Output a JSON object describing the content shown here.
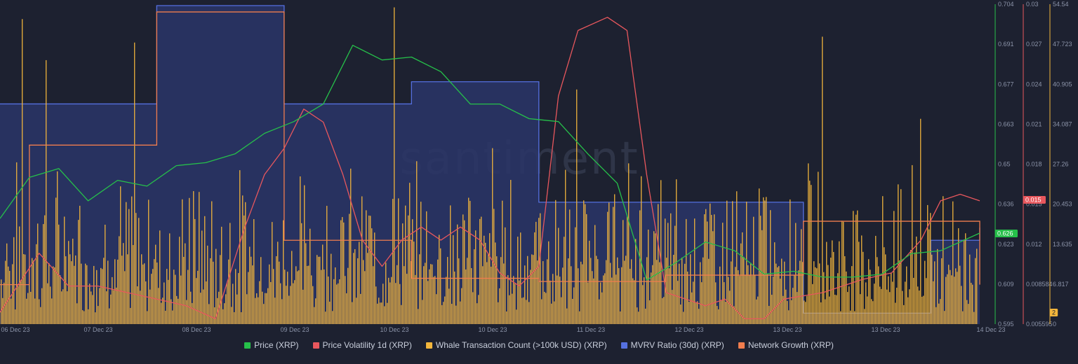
{
  "watermark": "santiment",
  "colors": {
    "background": "#1d2130",
    "price": "#26c04a",
    "volatility": "#e8575d",
    "whale": "#f3b63c",
    "mvrv": "#5570e0",
    "network": "#f07d4e"
  },
  "current_labels": {
    "price": "0.626",
    "volatility": "0.015",
    "whale": "2"
  },
  "chart_data": {
    "type": "bar",
    "x_tick_labels": [
      "06 Dec 23",
      "07 Dec 23",
      "08 Dec 23",
      "09 Dec 23",
      "10 Dec 23",
      "10 Dec 23",
      "11 Dec 23",
      "12 Dec 23",
      "13 Dec 23",
      "13 Dec 23",
      "14 Dec 23"
    ],
    "axes": [
      {
        "series": "Price (XRP)",
        "ticks": [
          "0.704",
          "0.691",
          "0.677",
          "0.663",
          "0.65",
          "0.636",
          "0.623",
          "0.609",
          "0.595"
        ],
        "range": [
          0.595,
          0.704
        ]
      },
      {
        "series": "Price Volatility 1d (XRP)",
        "ticks": [
          "0.03",
          "0.027",
          "0.024",
          "0.021",
          "0.018",
          "0.015",
          "0.012",
          "0.008584",
          "0.005595"
        ],
        "range": [
          0.005595,
          0.03
        ]
      },
      {
        "series": "Whale Transaction Count (>100k USD) (XRP)",
        "ticks": [
          "54.54",
          "47.723",
          "40.905",
          "34.087",
          "27.26",
          "20.453",
          "13.635",
          "6.817",
          "0"
        ],
        "range": [
          0,
          54.54
        ]
      }
    ],
    "series": [
      {
        "name": "Price (XRP)",
        "type": "line",
        "x": [
          0,
          0.03,
          0.06,
          0.09,
          0.12,
          0.15,
          0.18,
          0.21,
          0.24,
          0.27,
          0.3,
          0.33,
          0.36,
          0.39,
          0.42,
          0.45,
          0.48,
          0.51,
          0.54,
          0.57,
          0.6,
          0.63,
          0.66,
          0.69,
          0.72,
          0.75,
          0.78,
          0.81,
          0.84,
          0.87,
          0.9,
          0.93,
          0.96,
          1.0
        ],
        "values": [
          0.631,
          0.645,
          0.648,
          0.637,
          0.644,
          0.642,
          0.649,
          0.65,
          0.653,
          0.66,
          0.664,
          0.67,
          0.69,
          0.685,
          0.686,
          0.681,
          0.67,
          0.67,
          0.665,
          0.664,
          0.653,
          0.643,
          0.61,
          0.616,
          0.623,
          0.62,
          0.612,
          0.613,
          0.611,
          0.611,
          0.612,
          0.619,
          0.62,
          0.626
        ]
      },
      {
        "name": "Price Volatility 1d (XRP)",
        "type": "line",
        "x": [
          0,
          0.04,
          0.07,
          0.1,
          0.13,
          0.16,
          0.19,
          0.22,
          0.25,
          0.27,
          0.29,
          0.31,
          0.33,
          0.35,
          0.37,
          0.39,
          0.41,
          0.43,
          0.45,
          0.47,
          0.49,
          0.51,
          0.53,
          0.55,
          0.57,
          0.59,
          0.62,
          0.64,
          0.66,
          0.68,
          0.7,
          0.72,
          0.74,
          0.76,
          0.78,
          0.8,
          0.84,
          0.88,
          0.91,
          0.94,
          0.96,
          0.98,
          1.0
        ],
        "values": [
          0.0065,
          0.011,
          0.0085,
          0.0085,
          0.008,
          0.0075,
          0.007,
          0.006,
          0.013,
          0.017,
          0.019,
          0.022,
          0.021,
          0.017,
          0.012,
          0.01,
          0.012,
          0.013,
          0.012,
          0.013,
          0.012,
          0.0095,
          0.0085,
          0.01,
          0.023,
          0.028,
          0.029,
          0.028,
          0.017,
          0.008,
          0.0075,
          0.007,
          0.0075,
          0.006,
          0.006,
          0.0075,
          0.008,
          0.009,
          0.0095,
          0.012,
          0.015,
          0.0155,
          0.015
        ]
      },
      {
        "name": "MVRV Ratio (30d) (XRP)",
        "type": "step",
        "x": [
          0,
          0.16,
          0.29,
          0.42,
          0.55,
          0.82,
          0.95,
          1.0
        ],
        "values": [
          0.69,
          1.0,
          0.69,
          0.76,
          0.38,
          0.03,
          0.26,
          0.3
        ]
      },
      {
        "name": "Network Growth (XRP)",
        "type": "step",
        "x": [
          0,
          0.03,
          0.16,
          0.29,
          0.42,
          0.55,
          0.68,
          0.82,
          0.95,
          1.0
        ],
        "values": [
          0.12,
          0.56,
          0.98,
          0.26,
          0.14,
          0.13,
          0.15,
          0.32,
          0.32,
          0.12
        ]
      },
      {
        "name": "Whale Transaction Count (>100k USD) (XRP)",
        "type": "bar",
        "summary": "Dense hourly bars mostly between 2 and 25 transactions, with spikes near 45, 52 and 54"
      }
    ]
  },
  "legend": [
    {
      "label": "Price (XRP)",
      "color": "#26c04a"
    },
    {
      "label": "Price Volatility 1d (XRP)",
      "color": "#e8575d"
    },
    {
      "label": "Whale Transaction Count (>100k USD) (XRP)",
      "color": "#f3b63c"
    },
    {
      "label": "MVRV Ratio (30d) (XRP)",
      "color": "#5570e0"
    },
    {
      "label": "Network Growth (XRP)",
      "color": "#f07d4e"
    }
  ]
}
